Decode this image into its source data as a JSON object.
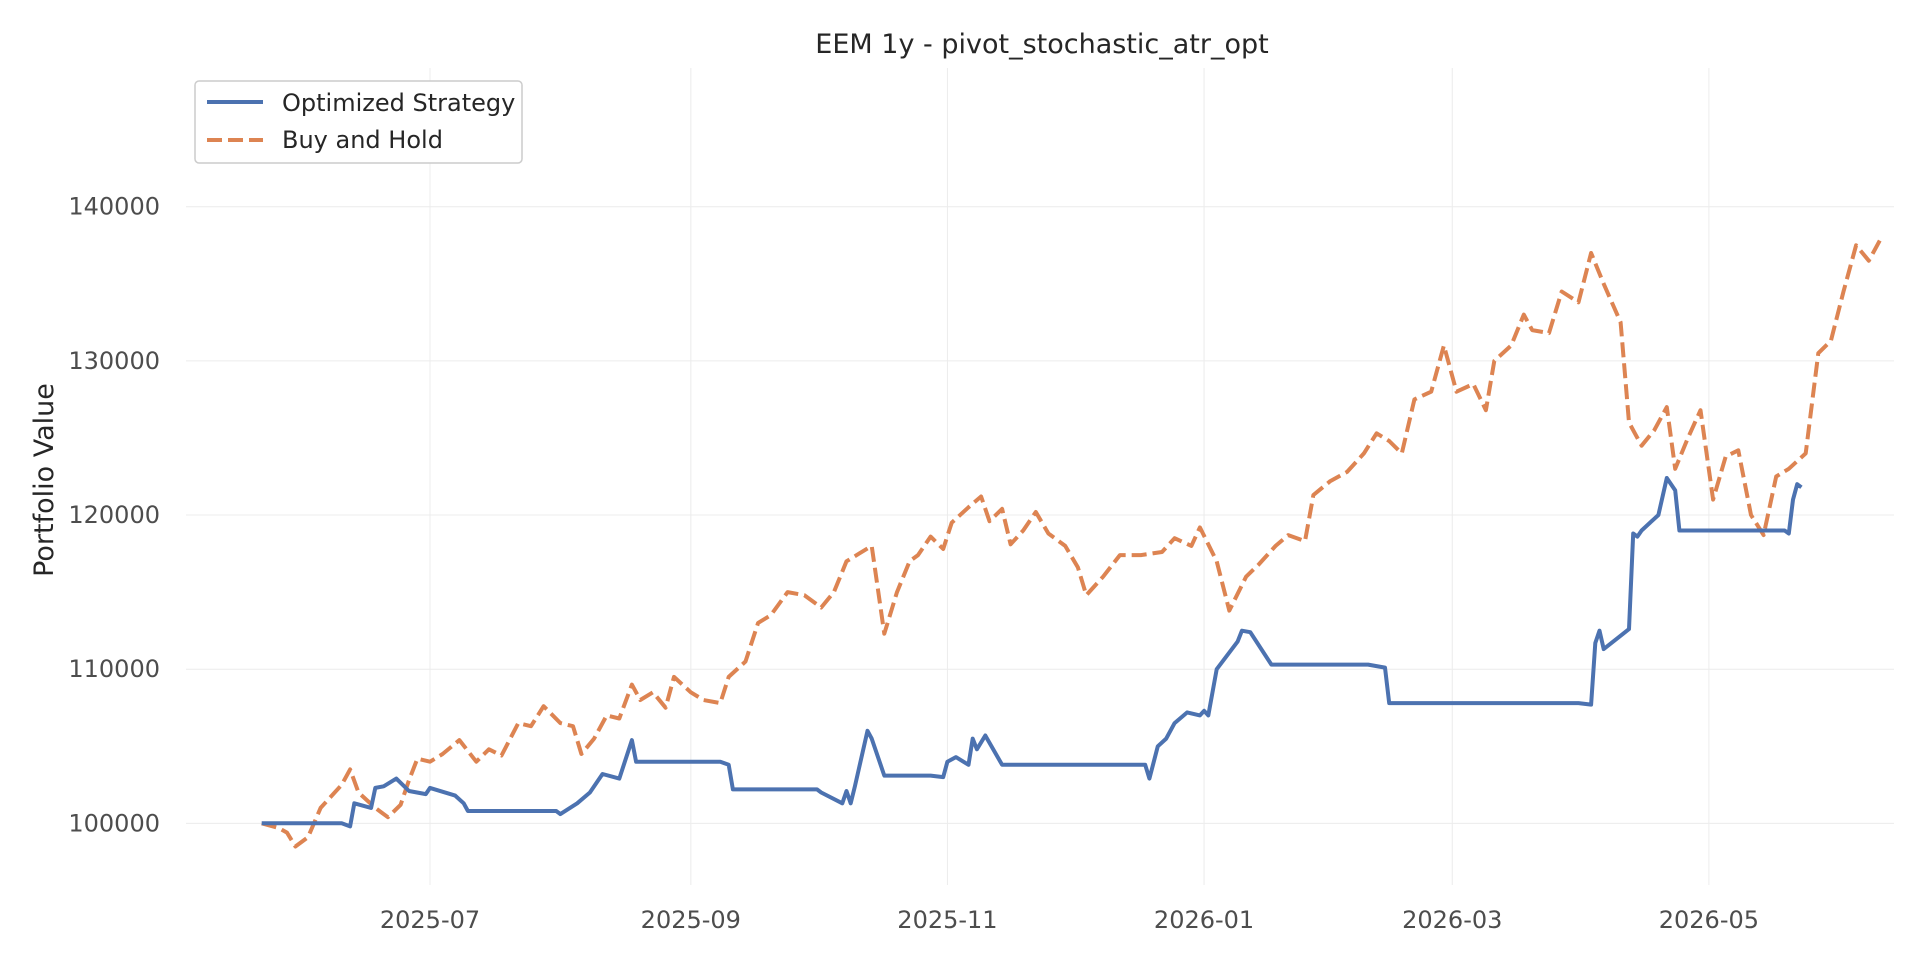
{
  "chart_data": {
    "type": "line",
    "title": "EEM 1y - pivot_stochastic_atr_opt",
    "xlabel": "",
    "ylabel": "Portfolio Value",
    "xlim": [
      "2025-05-04",
      "2026-06-14"
    ],
    "ylim": [
      96000,
      149000
    ],
    "x_ticks": [
      "2025-07",
      "2025-09",
      "2025-11",
      "2026-01",
      "2026-03",
      "2026-05"
    ],
    "y_ticks": [
      100000,
      110000,
      120000,
      130000,
      140000
    ],
    "grid": true,
    "legend": "top-left",
    "series": [
      {
        "name": "Optimized Strategy",
        "color": "#4c72b0",
        "style": "solid",
        "points": [
          [
            "2025-05-22",
            100000
          ],
          [
            "2025-05-29",
            100000
          ],
          [
            "2025-06-06",
            100000
          ],
          [
            "2025-06-10",
            100000
          ],
          [
            "2025-06-12",
            99800
          ],
          [
            "2025-06-13",
            101300
          ],
          [
            "2025-06-17",
            101000
          ],
          [
            "2025-06-18",
            102300
          ],
          [
            "2025-06-20",
            102400
          ],
          [
            "2025-06-23",
            102900
          ],
          [
            "2025-06-26",
            102100
          ],
          [
            "2025-06-30",
            101900
          ],
          [
            "2025-07-01",
            102300
          ],
          [
            "2025-07-07",
            101800
          ],
          [
            "2025-07-09",
            101300
          ],
          [
            "2025-07-10",
            100800
          ],
          [
            "2025-07-31",
            100800
          ],
          [
            "2025-08-01",
            100600
          ],
          [
            "2025-08-05",
            101300
          ],
          [
            "2025-08-08",
            102000
          ],
          [
            "2025-08-11",
            103200
          ],
          [
            "2025-08-15",
            102900
          ],
          [
            "2025-08-18",
            105400
          ],
          [
            "2025-08-19",
            104000
          ],
          [
            "2025-09-08",
            104000
          ],
          [
            "2025-09-10",
            103800
          ],
          [
            "2025-09-11",
            102200
          ],
          [
            "2025-10-01",
            102200
          ],
          [
            "2025-10-02",
            102000
          ],
          [
            "2025-10-07",
            101300
          ],
          [
            "2025-10-08",
            102100
          ],
          [
            "2025-10-09",
            101300
          ],
          [
            "2025-10-10",
            102400
          ],
          [
            "2025-10-13",
            106000
          ],
          [
            "2025-10-14",
            105500
          ],
          [
            "2025-10-17",
            103100
          ],
          [
            "2025-10-28",
            103100
          ],
          [
            "2025-10-31",
            103000
          ],
          [
            "2025-11-01",
            104000
          ],
          [
            "2025-11-03",
            104300
          ],
          [
            "2025-11-06",
            103800
          ],
          [
            "2025-11-07",
            105500
          ],
          [
            "2025-11-08",
            104800
          ],
          [
            "2025-11-10",
            105700
          ],
          [
            "2025-11-14",
            103800
          ],
          [
            "2025-12-15",
            103800
          ],
          [
            "2025-12-18",
            103800
          ],
          [
            "2025-12-19",
            102900
          ],
          [
            "2025-12-21",
            105000
          ],
          [
            "2025-12-23",
            105500
          ],
          [
            "2025-12-24",
            106000
          ],
          [
            "2025-12-25",
            106500
          ],
          [
            "2025-12-28",
            107200
          ],
          [
            "2025-12-31",
            107000
          ],
          [
            "2026-01-01",
            107300
          ],
          [
            "2026-01-02",
            107000
          ],
          [
            "2026-01-04",
            110000
          ],
          [
            "2026-01-09",
            111800
          ],
          [
            "2026-01-10",
            112500
          ],
          [
            "2026-01-12",
            112400
          ],
          [
            "2026-01-17",
            110300
          ],
          [
            "2026-02-09",
            110300
          ],
          [
            "2026-02-13",
            110100
          ],
          [
            "2026-02-14",
            107800
          ],
          [
            "2026-03-31",
            107800
          ],
          [
            "2026-04-03",
            107700
          ],
          [
            "2026-04-04",
            111700
          ],
          [
            "2026-04-05",
            112500
          ],
          [
            "2026-04-06",
            111300
          ],
          [
            "2026-04-12",
            112600
          ],
          [
            "2026-04-13",
            118800
          ],
          [
            "2026-04-14",
            118600
          ],
          [
            "2026-04-15",
            119000
          ],
          [
            "2026-04-19",
            120000
          ],
          [
            "2026-04-21",
            122400
          ],
          [
            "2026-04-23",
            121600
          ],
          [
            "2026-04-24",
            119000
          ],
          [
            "2026-05-19",
            119000
          ],
          [
            "2026-05-20",
            118800
          ],
          [
            "2026-05-21",
            121000
          ],
          [
            "2026-05-22",
            122000
          ],
          [
            "2026-05-23",
            121800
          ]
        ]
      },
      {
        "name": "Buy and Hold",
        "color": "#dd8452",
        "style": "dashed",
        "points": [
          [
            "2025-05-22",
            100000
          ],
          [
            "2025-05-26",
            99700
          ],
          [
            "2025-05-28",
            99400
          ],
          [
            "2025-05-30",
            98500
          ],
          [
            "2025-06-02",
            99100
          ],
          [
            "2025-06-05",
            101000
          ],
          [
            "2025-06-10",
            102500
          ],
          [
            "2025-06-12",
            103500
          ],
          [
            "2025-06-14",
            102000
          ],
          [
            "2025-06-18",
            101000
          ],
          [
            "2025-06-21",
            100400
          ],
          [
            "2025-06-24",
            101200
          ],
          [
            "2025-06-26",
            102800
          ],
          [
            "2025-06-28",
            104200
          ],
          [
            "2025-07-01",
            104000
          ],
          [
            "2025-07-04",
            104500
          ],
          [
            "2025-07-08",
            105400
          ],
          [
            "2025-07-12",
            104000
          ],
          [
            "2025-07-15",
            104800
          ],
          [
            "2025-07-18",
            104400
          ],
          [
            "2025-07-22",
            106500
          ],
          [
            "2025-07-25",
            106300
          ],
          [
            "2025-07-28",
            107600
          ],
          [
            "2025-08-01",
            106500
          ],
          [
            "2025-08-04",
            106300
          ],
          [
            "2025-08-06",
            104500
          ],
          [
            "2025-08-09",
            105500
          ],
          [
            "2025-08-12",
            107000
          ],
          [
            "2025-08-15",
            106800
          ],
          [
            "2025-08-18",
            109000
          ],
          [
            "2025-08-20",
            108000
          ],
          [
            "2025-08-23",
            108500
          ],
          [
            "2025-08-26",
            107500
          ],
          [
            "2025-08-28",
            109500
          ],
          [
            "2025-09-01",
            108500
          ],
          [
            "2025-09-04",
            108000
          ],
          [
            "2025-09-08",
            107800
          ],
          [
            "2025-09-10",
            109500
          ],
          [
            "2025-09-14",
            110500
          ],
          [
            "2025-09-17",
            113000
          ],
          [
            "2025-09-20",
            113500
          ],
          [
            "2025-09-24",
            115000
          ],
          [
            "2025-09-28",
            114800
          ],
          [
            "2025-10-02",
            114000
          ],
          [
            "2025-10-05",
            115000
          ],
          [
            "2025-10-08",
            117000
          ],
          [
            "2025-10-11",
            117500
          ],
          [
            "2025-10-14",
            118000
          ],
          [
            "2025-10-17",
            112300
          ],
          [
            "2025-10-20",
            115000
          ],
          [
            "2025-10-23",
            117000
          ],
          [
            "2025-10-25",
            117400
          ],
          [
            "2025-10-28",
            118600
          ],
          [
            "2025-10-31",
            117800
          ],
          [
            "2025-11-02",
            119500
          ],
          [
            "2025-11-06",
            120500
          ],
          [
            "2025-11-09",
            121200
          ],
          [
            "2025-11-11",
            119600
          ],
          [
            "2025-11-14",
            120400
          ],
          [
            "2025-11-16",
            118100
          ],
          [
            "2025-11-19",
            119000
          ],
          [
            "2025-11-22",
            120200
          ],
          [
            "2025-11-25",
            118800
          ],
          [
            "2025-11-29",
            118000
          ],
          [
            "2025-12-02",
            116600
          ],
          [
            "2025-12-04",
            114800
          ],
          [
            "2025-12-08",
            116000
          ],
          [
            "2025-12-12",
            117400
          ],
          [
            "2025-12-17",
            117400
          ],
          [
            "2025-12-22",
            117600
          ],
          [
            "2025-12-25",
            118500
          ],
          [
            "2025-12-29",
            118000
          ],
          [
            "2025-12-31",
            119200
          ],
          [
            "2026-01-04",
            117000
          ],
          [
            "2026-01-07",
            113800
          ],
          [
            "2026-01-11",
            116000
          ],
          [
            "2026-01-14",
            116800
          ],
          [
            "2026-01-18",
            118000
          ],
          [
            "2026-01-21",
            118700
          ],
          [
            "2026-01-25",
            118300
          ],
          [
            "2026-01-27",
            121300
          ],
          [
            "2026-01-31",
            122200
          ],
          [
            "2026-02-04",
            122800
          ],
          [
            "2026-02-08",
            124000
          ],
          [
            "2026-02-11",
            125300
          ],
          [
            "2026-02-14",
            124800
          ],
          [
            "2026-02-17",
            124000
          ],
          [
            "2026-02-20",
            127500
          ],
          [
            "2026-02-24",
            128000
          ],
          [
            "2026-02-27",
            131000
          ],
          [
            "2026-03-02",
            128000
          ],
          [
            "2026-03-06",
            128500
          ],
          [
            "2026-03-09",
            126800
          ],
          [
            "2026-03-11",
            130000
          ],
          [
            "2026-03-15",
            131000
          ],
          [
            "2026-03-18",
            133000
          ],
          [
            "2026-03-20",
            132000
          ],
          [
            "2026-03-24",
            131800
          ],
          [
            "2026-03-27",
            134500
          ],
          [
            "2026-03-31",
            133800
          ],
          [
            "2026-04-03",
            137000
          ],
          [
            "2026-04-06",
            135000
          ],
          [
            "2026-04-10",
            132500
          ],
          [
            "2026-04-12",
            126000
          ],
          [
            "2026-04-15",
            124500
          ],
          [
            "2026-04-18",
            125500
          ],
          [
            "2026-04-21",
            127000
          ],
          [
            "2026-04-23",
            123000
          ],
          [
            "2026-04-26",
            125000
          ],
          [
            "2026-04-29",
            126800
          ],
          [
            "2026-05-02",
            121000
          ],
          [
            "2026-05-05",
            123800
          ],
          [
            "2026-05-08",
            124200
          ],
          [
            "2026-05-11",
            120000
          ],
          [
            "2026-05-14",
            118700
          ],
          [
            "2026-05-17",
            122500
          ],
          [
            "2026-05-20",
            123000
          ],
          [
            "2026-05-24",
            124000
          ],
          [
            "2026-05-27",
            130500
          ],
          [
            "2026-05-30",
            131300
          ],
          [
            "2026-06-02",
            134500
          ],
          [
            "2026-06-05",
            137500
          ],
          [
            "2026-06-08",
            136500
          ],
          [
            "2026-06-11",
            138000
          ]
        ]
      }
    ]
  }
}
